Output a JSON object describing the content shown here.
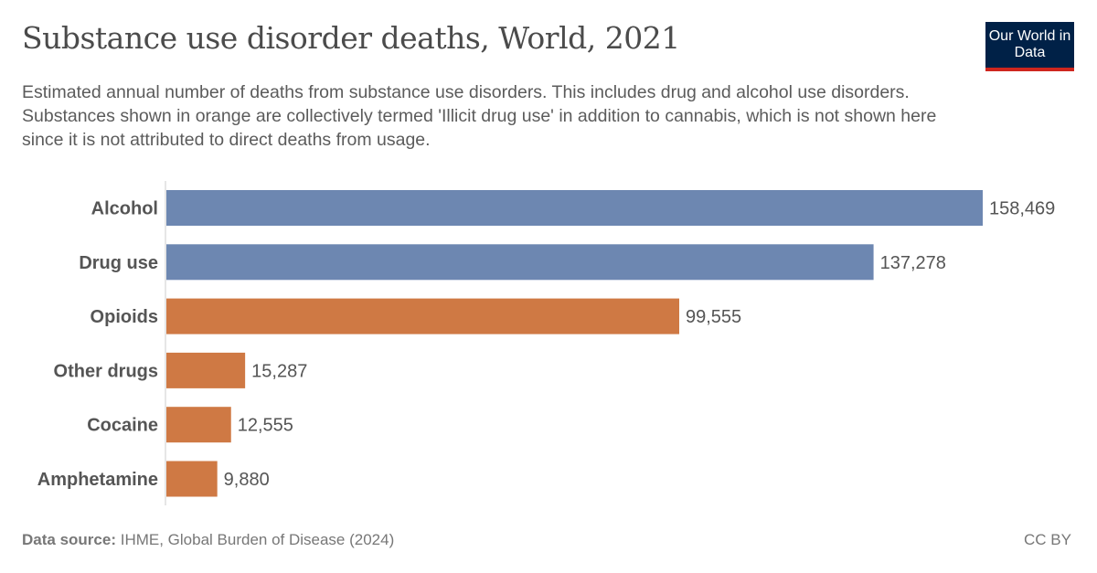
{
  "header": {
    "title": "Substance use disorder deaths, World, 2021",
    "subtitle": "Estimated annual number of deaths from substance use disorders. This includes drug and alcohol use disorders. Substances shown in orange are collectively termed 'Illicit drug use' in addition to cannabis, which is not shown here since it is not attributed to direct deaths from usage.",
    "logo": "Our World in Data"
  },
  "chart_data": {
    "type": "bar",
    "orientation": "horizontal",
    "title": "Substance use disorder deaths, World, 2021",
    "categories": [
      "Alcohol",
      "Drug use",
      "Opioids",
      "Other drugs",
      "Cocaine",
      "Amphetamine"
    ],
    "values": [
      158469,
      137278,
      99555,
      15287,
      12555,
      9880
    ],
    "labels": [
      "158,469",
      "137,278",
      "99,555",
      "15,287",
      "12,555",
      "9,880"
    ],
    "colors": [
      "#6d87b1",
      "#6d87b1",
      "#cf7944",
      "#cf7944",
      "#cf7944",
      "#cf7944"
    ],
    "xlim": [
      0,
      158469
    ],
    "grid": false,
    "legend": "none"
  },
  "footer": {
    "source_label": "Data source:",
    "source": "IHME, Global Burden of Disease (2024)",
    "license": "CC BY"
  }
}
